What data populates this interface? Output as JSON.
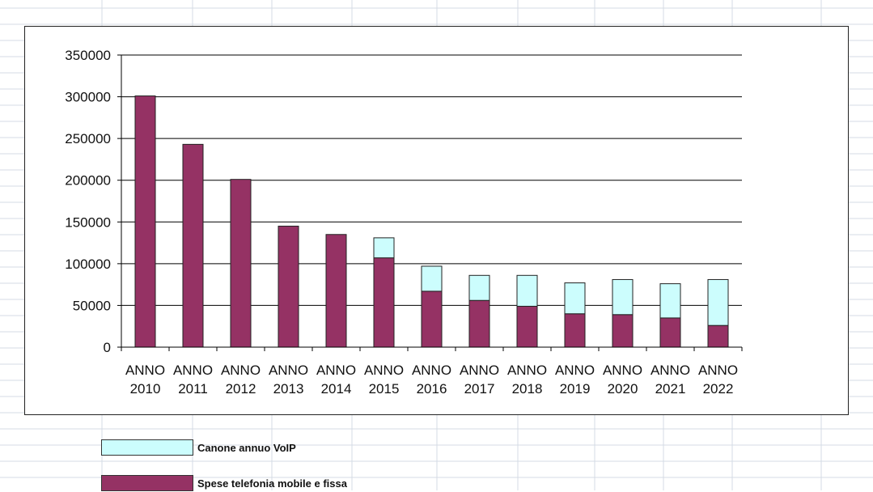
{
  "colors": {
    "voip": "#ccfdfd",
    "telefonia": "#953264",
    "stroke": "#222222",
    "gridline": "#000000",
    "sheet_grid": "#d4dbe4"
  },
  "legend": [
    {
      "label": "Canone annuo VoIP",
      "color_key": "voip"
    },
    {
      "label": "Spese telefonia mobile e fissa",
      "color_key": "telefonia"
    }
  ],
  "chart_data": {
    "type": "bar",
    "stacked": true,
    "categories": [
      [
        "ANNO",
        "2010"
      ],
      [
        "ANNO",
        "2011"
      ],
      [
        "ANNO",
        "2012"
      ],
      [
        "ANNO",
        "2013"
      ],
      [
        "ANNO",
        "2014"
      ],
      [
        "ANNO",
        "2015"
      ],
      [
        "ANNO",
        "2016"
      ],
      [
        "ANNO",
        "2017"
      ],
      [
        "ANNO",
        "2018"
      ],
      [
        "ANNO",
        "2019"
      ],
      [
        "ANNO",
        "2020"
      ],
      [
        "ANNO",
        "2021"
      ],
      [
        "ANNO",
        "2022"
      ]
    ],
    "series": [
      {
        "name": "Spese telefonia mobile e fissa",
        "values": [
          301000,
          243000,
          201000,
          145000,
          135000,
          107000,
          67000,
          56000,
          49000,
          40000,
          39000,
          35000,
          26000
        ]
      },
      {
        "name": "Canone annuo VoIP",
        "values": [
          0,
          0,
          0,
          0,
          0,
          24000,
          30000,
          30000,
          37000,
          37000,
          42000,
          41000,
          55000
        ]
      }
    ],
    "yticks": [
      "0",
      "50000",
      "100000",
      "150000",
      "200000",
      "250000",
      "300000",
      "350000"
    ],
    "ylim": [
      0,
      350000
    ],
    "grid": true,
    "legend_position": "bottom-left"
  }
}
